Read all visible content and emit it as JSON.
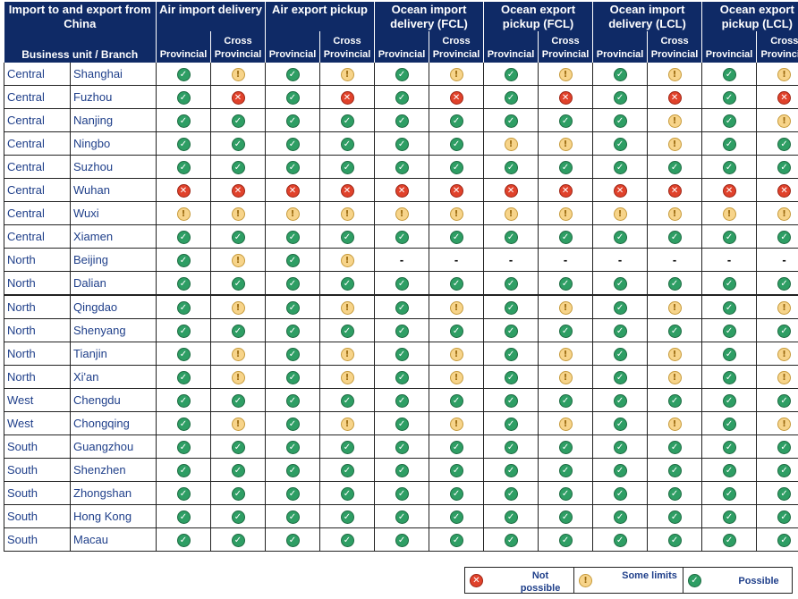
{
  "header": {
    "corner_top": "Import to and export from China",
    "corner_bottom": "Business unit / Branch",
    "groups": [
      "Air import delivery",
      "Air export pickup",
      "Ocean import delivery (FCL)",
      "Ocean export pickup (FCL)",
      "Ocean import delivery (LCL)",
      "Ocean export pickup (LCL)"
    ],
    "provincial": "Provincial",
    "cross": "Cross",
    "cross_provincial": "Provincial"
  },
  "status_icons": {
    "ok": {
      "glyph": "✓",
      "color": "#2e9e64",
      "icon": "check-icon"
    },
    "no": {
      "glyph": "✕",
      "color": "#e0422b",
      "icon": "cross-icon"
    },
    "lim": {
      "glyph": "!",
      "color": "#f7d48a",
      "icon": "exclamation-icon"
    },
    "na": {
      "glyph": "-",
      "icon": "dash"
    }
  },
  "rows": [
    {
      "unit": "Central",
      "branch": "Shanghai",
      "s": [
        "ok",
        "lim",
        "ok",
        "lim",
        "ok",
        "lim",
        "ok",
        "lim",
        "ok",
        "lim",
        "ok",
        "lim"
      ]
    },
    {
      "unit": "Central",
      "branch": "Fuzhou",
      "s": [
        "ok",
        "no",
        "ok",
        "no",
        "ok",
        "no",
        "ok",
        "no",
        "ok",
        "no",
        "ok",
        "no"
      ]
    },
    {
      "unit": "Central",
      "branch": "Nanjing",
      "s": [
        "ok",
        "ok",
        "ok",
        "ok",
        "ok",
        "ok",
        "ok",
        "ok",
        "ok",
        "lim",
        "ok",
        "lim"
      ]
    },
    {
      "unit": "Central",
      "branch": "Ningbo",
      "s": [
        "ok",
        "ok",
        "ok",
        "ok",
        "ok",
        "ok",
        "lim",
        "lim",
        "ok",
        "lim",
        "ok",
        "ok"
      ]
    },
    {
      "unit": "Central",
      "branch": "Suzhou",
      "s": [
        "ok",
        "ok",
        "ok",
        "ok",
        "ok",
        "ok",
        "ok",
        "ok",
        "ok",
        "ok",
        "ok",
        "ok"
      ]
    },
    {
      "unit": "Central",
      "branch": "Wuhan",
      "s": [
        "no",
        "no",
        "no",
        "no",
        "no",
        "no",
        "no",
        "no",
        "no",
        "no",
        "no",
        "no"
      ]
    },
    {
      "unit": "Central",
      "branch": "Wuxi",
      "s": [
        "lim",
        "lim",
        "lim",
        "lim",
        "lim",
        "lim",
        "lim",
        "lim",
        "lim",
        "lim",
        "lim",
        "lim"
      ]
    },
    {
      "unit": "Central",
      "branch": "Xiamen",
      "s": [
        "ok",
        "ok",
        "ok",
        "ok",
        "ok",
        "ok",
        "ok",
        "ok",
        "ok",
        "ok",
        "ok",
        "ok"
      ]
    },
    {
      "unit": "North",
      "branch": "Beijing",
      "s": [
        "ok",
        "lim",
        "ok",
        "lim",
        "na",
        "na",
        "na",
        "na",
        "na",
        "na",
        "na",
        "na"
      ]
    },
    {
      "unit": "North",
      "branch": "Dalian",
      "s": [
        "ok",
        "ok",
        "ok",
        "ok",
        "ok",
        "ok",
        "ok",
        "ok",
        "ok",
        "ok",
        "ok",
        "ok"
      ]
    },
    {
      "unit": "North",
      "branch": "Qingdao",
      "s": [
        "ok",
        "lim",
        "ok",
        "lim",
        "ok",
        "lim",
        "ok",
        "lim",
        "ok",
        "lim",
        "ok",
        "lim"
      ]
    },
    {
      "unit": "North",
      "branch": "Shenyang",
      "s": [
        "ok",
        "ok",
        "ok",
        "ok",
        "ok",
        "ok",
        "ok",
        "ok",
        "ok",
        "ok",
        "ok",
        "ok"
      ]
    },
    {
      "unit": "North",
      "branch": "Tianjin",
      "s": [
        "ok",
        "lim",
        "ok",
        "lim",
        "ok",
        "lim",
        "ok",
        "lim",
        "ok",
        "lim",
        "ok",
        "lim"
      ]
    },
    {
      "unit": "North",
      "branch": "Xi'an",
      "s": [
        "ok",
        "lim",
        "ok",
        "lim",
        "ok",
        "lim",
        "ok",
        "lim",
        "ok",
        "lim",
        "ok",
        "lim"
      ]
    },
    {
      "unit": "West",
      "branch": "Chengdu",
      "s": [
        "ok",
        "ok",
        "ok",
        "ok",
        "ok",
        "ok",
        "ok",
        "ok",
        "ok",
        "ok",
        "ok",
        "ok"
      ]
    },
    {
      "unit": "West",
      "branch": "Chongqing",
      "s": [
        "ok",
        "lim",
        "ok",
        "lim",
        "ok",
        "lim",
        "ok",
        "lim",
        "ok",
        "lim",
        "ok",
        "lim"
      ]
    },
    {
      "unit": "South",
      "branch": "Guangzhou",
      "s": [
        "ok",
        "ok",
        "ok",
        "ok",
        "ok",
        "ok",
        "ok",
        "ok",
        "ok",
        "ok",
        "ok",
        "ok"
      ]
    },
    {
      "unit": "South",
      "branch": "Shenzhen",
      "s": [
        "ok",
        "ok",
        "ok",
        "ok",
        "ok",
        "ok",
        "ok",
        "ok",
        "ok",
        "ok",
        "ok",
        "ok"
      ]
    },
    {
      "unit": "South",
      "branch": "Zhongshan",
      "s": [
        "ok",
        "ok",
        "ok",
        "ok",
        "ok",
        "ok",
        "ok",
        "ok",
        "ok",
        "ok",
        "ok",
        "ok"
      ]
    },
    {
      "unit": "South",
      "branch": "Hong Kong",
      "s": [
        "ok",
        "ok",
        "ok",
        "ok",
        "ok",
        "ok",
        "ok",
        "ok",
        "ok",
        "ok",
        "ok",
        "ok"
      ]
    },
    {
      "unit": "South",
      "branch": "Macau",
      "s": [
        "ok",
        "ok",
        "ok",
        "ok",
        "ok",
        "ok",
        "ok",
        "ok",
        "ok",
        "ok",
        "ok",
        "ok"
      ]
    }
  ],
  "legend": [
    {
      "key": "no",
      "label": "Not possible"
    },
    {
      "key": "lim",
      "label": "Some limits"
    },
    {
      "key": "ok",
      "label": "Possible"
    }
  ]
}
